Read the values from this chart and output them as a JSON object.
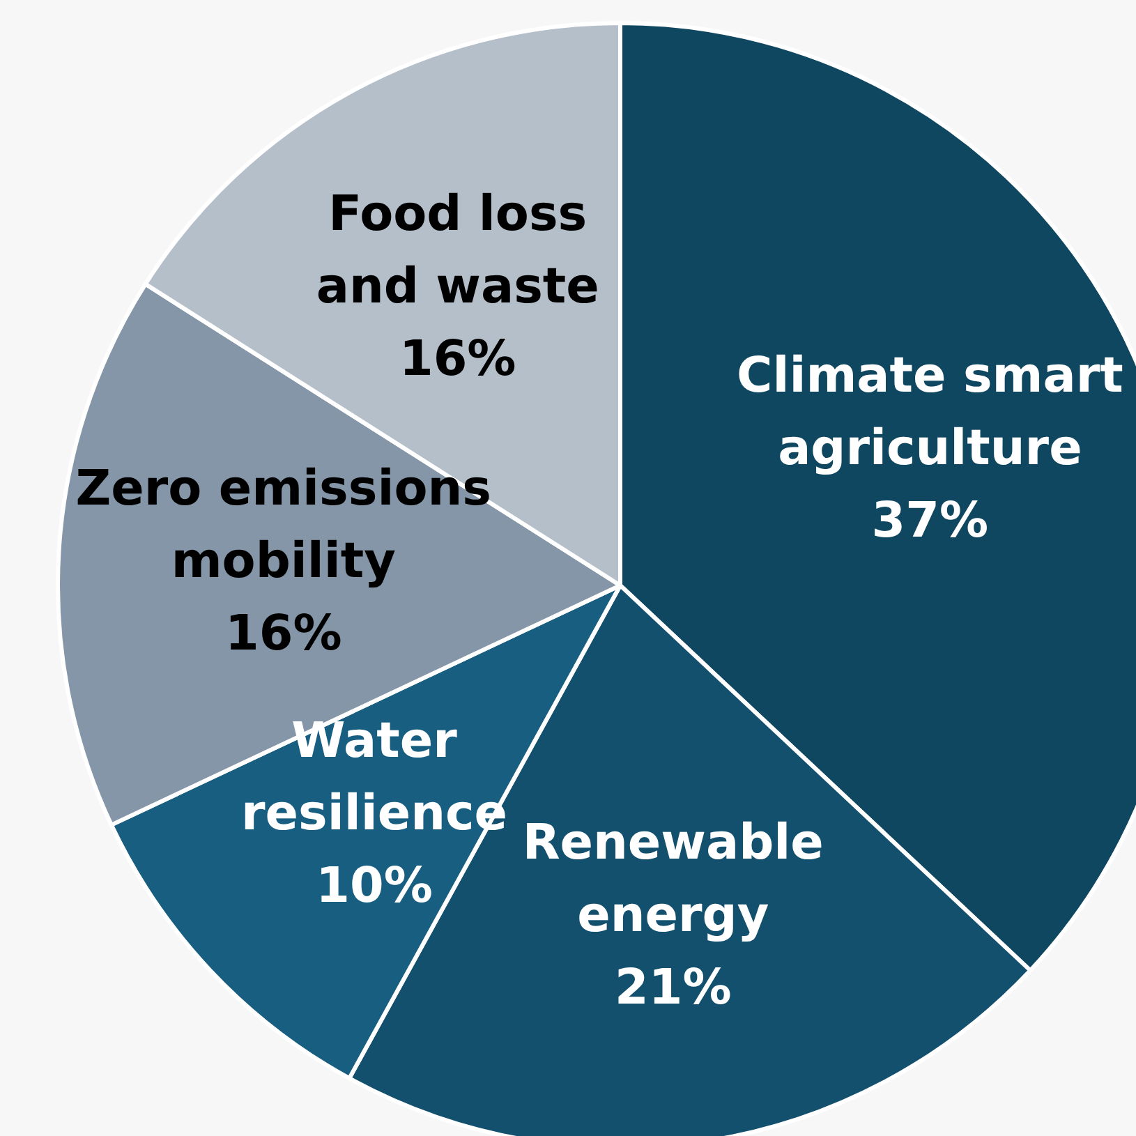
{
  "chart_data": {
    "type": "pie",
    "categories": [
      "Climate smart agriculture",
      "Renewable energy",
      "Water resilience",
      "Zero emissions mobility",
      "Food loss and waste"
    ],
    "values": [
      37,
      21,
      10,
      16,
      16
    ],
    "value_labels": [
      "37%",
      "21%",
      "10%",
      "16%",
      "16%"
    ],
    "colors": [
      "#0f4760",
      "#13506e",
      "#175e80",
      "#8596a8",
      "#b5bfca"
    ],
    "legend": false
  }
}
